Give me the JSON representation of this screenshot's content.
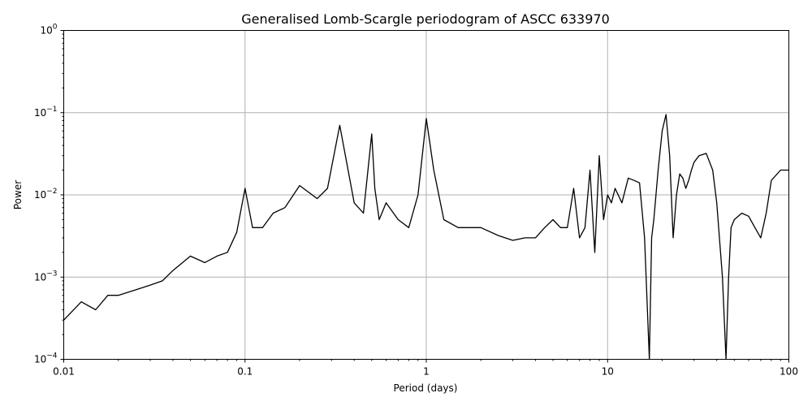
{
  "chart_data": {
    "type": "line",
    "title": "Generalised Lomb-Scargle periodogram of ASCC 633970",
    "xlabel": "Period (days)",
    "ylabel": "Power",
    "xscale": "log",
    "yscale": "log",
    "xlim": [
      0.01,
      100
    ],
    "ylim": [
      0.0001,
      1
    ],
    "grid": true,
    "line_color": "#000000",
    "grid_color": "#b0b0b0",
    "x_ticks": [
      {
        "value": 0.01,
        "label": "0.01"
      },
      {
        "value": 0.1,
        "label": "0.1"
      },
      {
        "value": 1,
        "label": "1"
      },
      {
        "value": 10,
        "label": "10"
      },
      {
        "value": 100,
        "label": "100"
      }
    ],
    "y_ticks": [
      {
        "value": 0.0001,
        "base": "10",
        "exp": "−4"
      },
      {
        "value": 0.001,
        "base": "10",
        "exp": "−3"
      },
      {
        "value": 0.01,
        "base": "10",
        "exp": "−2"
      },
      {
        "value": 0.1,
        "base": "10",
        "exp": "−1"
      },
      {
        "value": 1,
        "base": "10",
        "exp": "0"
      }
    ],
    "series": [
      {
        "x": [
          0.01,
          0.0125,
          0.015,
          0.0175,
          0.02,
          0.025,
          0.03,
          0.035,
          0.04,
          0.05,
          0.06,
          0.07,
          0.08,
          0.09,
          0.1,
          0.11,
          0.125,
          0.143,
          0.166,
          0.2,
          0.25,
          0.285,
          0.333,
          0.4,
          0.45,
          0.5,
          0.52,
          0.55,
          0.6,
          0.7,
          0.8,
          0.9,
          1.0,
          1.1,
          1.25,
          1.5,
          2.0,
          2.5,
          3.0,
          3.5,
          4.0,
          4.5,
          5.0,
          5.5,
          6.0,
          6.5,
          7.0,
          7.5,
          8.0,
          8.5,
          9.0,
          9.5,
          10.0,
          10.5,
          11.0,
          12.0,
          13.0,
          14.0,
          15.0,
          16.0,
          17.0,
          17.5,
          18.0,
          19.0,
          20.0,
          21.0,
          22.0,
          23.0,
          24.0,
          25.0,
          26.0,
          27.0,
          28.0,
          29.0,
          30.0,
          32.0,
          35.0,
          38.0,
          40.0,
          43.0,
          45.0,
          46.5,
          48.0,
          50.0,
          55.0,
          60.0,
          65.0,
          70.0,
          75.0,
          80.0,
          90.0,
          100.0
        ],
        "y": [
          0.0003,
          0.0005,
          0.0004,
          0.0006,
          0.0006,
          0.0007,
          0.0008,
          0.0009,
          0.0012,
          0.0018,
          0.0015,
          0.0018,
          0.002,
          0.0035,
          0.012,
          0.004,
          0.004,
          0.006,
          0.007,
          0.013,
          0.009,
          0.012,
          0.07,
          0.008,
          0.006,
          0.055,
          0.012,
          0.005,
          0.008,
          0.005,
          0.004,
          0.01,
          0.085,
          0.02,
          0.005,
          0.004,
          0.004,
          0.0032,
          0.0028,
          0.003,
          0.003,
          0.004,
          0.005,
          0.004,
          0.004,
          0.012,
          0.003,
          0.004,
          0.02,
          0.002,
          0.03,
          0.005,
          0.01,
          0.008,
          0.012,
          0.008,
          0.016,
          0.015,
          0.014,
          0.003,
          0.0001,
          0.003,
          0.005,
          0.02,
          0.06,
          0.095,
          0.03,
          0.003,
          0.01,
          0.018,
          0.016,
          0.012,
          0.015,
          0.02,
          0.025,
          0.03,
          0.032,
          0.02,
          0.008,
          0.001,
          0.0001,
          0.001,
          0.004,
          0.005,
          0.006,
          0.0055,
          0.004,
          0.003,
          0.006,
          0.015,
          0.02,
          0.02
        ]
      }
    ]
  }
}
